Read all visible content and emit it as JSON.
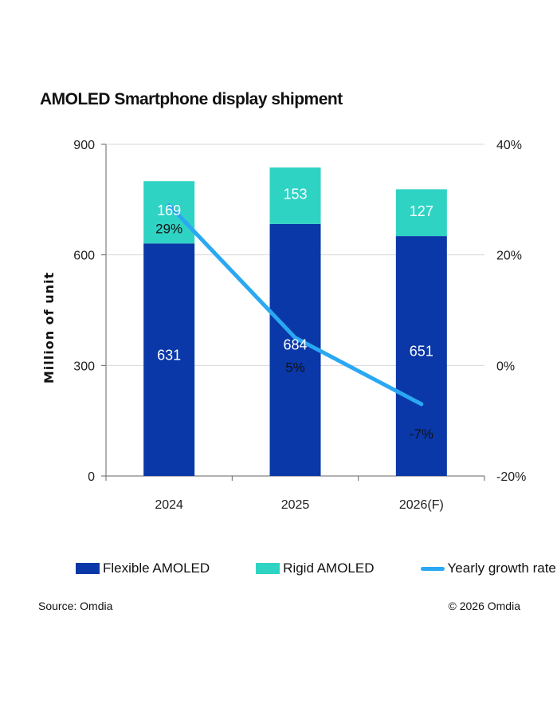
{
  "chart_data": {
    "type": "bar",
    "stacked": true,
    "title": "AMOLED Smartphone display shipment",
    "ylabel": "Million of unit",
    "categories": [
      "2024",
      "2025",
      "2026(F)"
    ],
    "ylim": [
      0,
      900
    ],
    "yticks": [
      "0",
      "300",
      "600",
      "900"
    ],
    "y2lim": [
      -20,
      40
    ],
    "y2ticks": [
      "-20%",
      "0%",
      "20%",
      "40%"
    ],
    "series": [
      {
        "name": "Flexible AMOLED",
        "values": [
          631,
          684,
          651
        ],
        "labels": [
          "631",
          "684",
          "651"
        ],
        "color": "#0a38a8",
        "label_color": "#ffffff"
      },
      {
        "name": "Rigid AMOLED",
        "values": [
          169,
          153,
          127
        ],
        "labels": [
          "169",
          "153",
          "127"
        ],
        "color": "#2fd3c4",
        "label_color": "#ffffff"
      }
    ],
    "line_series": {
      "name": "Yearly growth rate",
      "axis": "secondary",
      "values": [
        29,
        5,
        -7
      ],
      "labels": [
        "29%",
        "5%",
        "-7%"
      ],
      "color": "#2aa8f2"
    }
  },
  "legend": {
    "flexible": "Flexible AMOLED",
    "rigid": "Rigid AMOLED",
    "growth": "Yearly growth rate"
  },
  "footer": {
    "source": "Source: Omdia",
    "copyright": "© 2026 Omdia"
  }
}
